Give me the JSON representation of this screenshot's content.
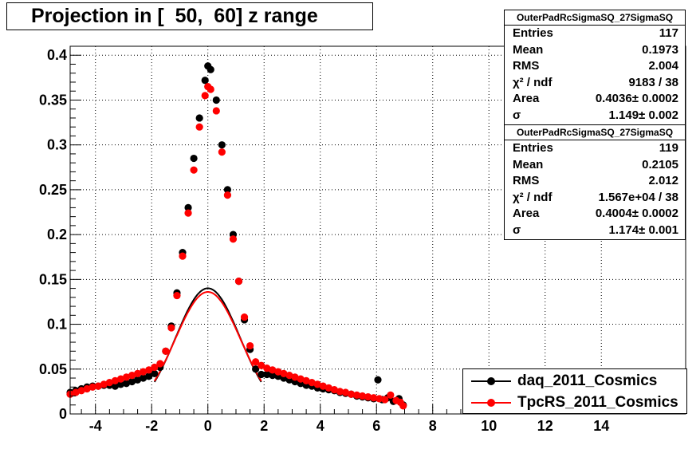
{
  "title": "Projection in [  50,  60] z range",
  "stats": [
    {
      "name": "OuterPadRcSigmaSQ_27SigmaSQ",
      "rows": [
        {
          "label": "Entries",
          "value": "117"
        },
        {
          "label": "Mean",
          "value": "0.1973"
        },
        {
          "label": "RMS",
          "value": "2.004"
        },
        {
          "label": "χ² / ndf",
          "value": "9183 / 38"
        },
        {
          "label": "Area",
          "value": "0.4036± 0.0002"
        },
        {
          "label": "σ",
          "value": "1.149± 0.002"
        }
      ]
    },
    {
      "name": "OuterPadRcSigmaSQ_27SigmaSQ",
      "rows": [
        {
          "label": "Entries",
          "value": "119"
        },
        {
          "label": "Mean",
          "value": "0.2105"
        },
        {
          "label": "RMS",
          "value": "2.012"
        },
        {
          "label": "χ² / ndf",
          "value": "1.567e+04 / 38"
        },
        {
          "label": "Area",
          "value": "0.4004± 0.0002"
        },
        {
          "label": "σ",
          "value": "1.174± 0.001"
        }
      ]
    }
  ],
  "legend": [
    {
      "label": "daq_2011_Cosmics",
      "color": "#000000"
    },
    {
      "label": "TpcRS_2011_Cosmics",
      "color": "#ff0000"
    }
  ],
  "chart_data": {
    "type": "scatter",
    "title": "Projection in [  50,  60] z range",
    "xlim": [
      -4.9,
      17
    ],
    "ylim": [
      0,
      0.41
    ],
    "grid": true,
    "legend_position": "bottom-right",
    "x_ticks": [
      -4,
      -2,
      0,
      2,
      4,
      6,
      8,
      10,
      12,
      14
    ],
    "y_ticks": [
      0,
      0.05,
      0.1,
      0.15,
      0.2,
      0.25,
      0.3,
      0.35,
      0.4
    ],
    "x_tick_labels": [
      "-4",
      "-2",
      "0",
      "2",
      "4",
      "6",
      "8",
      "10",
      "12",
      "14"
    ],
    "y_tick_labels": [
      "0",
      "0.05",
      "0.1",
      "0.15",
      "0.2",
      "0.25",
      "0.3",
      "0.35",
      "0.4"
    ],
    "series": [
      {
        "name": "daq_2011_Cosmics",
        "color": "#000000",
        "fit": {
          "area": 0.4036,
          "sigma": 1.149,
          "mean": 0.0
        },
        "points": [
          [
            -4.9,
            0.024
          ],
          [
            -4.7,
            0.026
          ],
          [
            -4.5,
            0.028
          ],
          [
            -4.3,
            0.03
          ],
          [
            -4.1,
            0.031
          ],
          [
            -3.9,
            0.031
          ],
          [
            -3.7,
            0.032
          ],
          [
            -3.5,
            0.032
          ],
          [
            -3.3,
            0.031
          ],
          [
            -3.1,
            0.033
          ],
          [
            -2.9,
            0.034
          ],
          [
            -2.7,
            0.036
          ],
          [
            -2.5,
            0.038
          ],
          [
            -2.3,
            0.04
          ],
          [
            -2.1,
            0.042
          ],
          [
            -1.9,
            0.045
          ],
          [
            -1.7,
            0.052
          ],
          [
            -1.5,
            0.07
          ],
          [
            -1.3,
            0.098
          ],
          [
            -1.1,
            0.135
          ],
          [
            -0.9,
            0.18
          ],
          [
            -0.7,
            0.23
          ],
          [
            -0.5,
            0.285
          ],
          [
            -0.3,
            0.33
          ],
          [
            -0.1,
            0.372
          ],
          [
            0.0,
            0.388
          ],
          [
            0.1,
            0.384
          ],
          [
            0.3,
            0.35
          ],
          [
            0.5,
            0.3
          ],
          [
            0.7,
            0.25
          ],
          [
            0.9,
            0.2
          ],
          [
            1.1,
            0.148
          ],
          [
            1.3,
            0.105
          ],
          [
            1.5,
            0.072
          ],
          [
            1.7,
            0.05
          ],
          [
            1.9,
            0.044
          ],
          [
            2.1,
            0.044
          ],
          [
            2.3,
            0.043
          ],
          [
            2.5,
            0.042
          ],
          [
            2.7,
            0.04
          ],
          [
            2.9,
            0.038
          ],
          [
            3.1,
            0.036
          ],
          [
            3.3,
            0.034
          ],
          [
            3.5,
            0.032
          ],
          [
            3.7,
            0.031
          ],
          [
            3.9,
            0.029
          ],
          [
            4.1,
            0.028
          ],
          [
            4.3,
            0.027
          ],
          [
            4.5,
            0.026
          ],
          [
            4.7,
            0.024
          ],
          [
            4.9,
            0.023
          ],
          [
            5.1,
            0.022
          ],
          [
            5.3,
            0.02
          ],
          [
            5.5,
            0.019
          ],
          [
            5.7,
            0.018
          ],
          [
            5.9,
            0.017
          ],
          [
            6.05,
            0.038
          ],
          [
            6.2,
            0.016
          ],
          [
            6.4,
            0.018
          ],
          [
            6.6,
            0.014
          ],
          [
            6.8,
            0.017
          ],
          [
            6.95,
            0.01
          ]
        ]
      },
      {
        "name": "TpcRS_2011_Cosmics",
        "color": "#ff0000",
        "fit": {
          "area": 0.4004,
          "sigma": 1.174,
          "mean": 0.0
        },
        "points": [
          [
            -4.9,
            0.022
          ],
          [
            -4.7,
            0.024
          ],
          [
            -4.5,
            0.026
          ],
          [
            -4.3,
            0.028
          ],
          [
            -4.1,
            0.03
          ],
          [
            -3.9,
            0.031
          ],
          [
            -3.7,
            0.033
          ],
          [
            -3.5,
            0.035
          ],
          [
            -3.3,
            0.037
          ],
          [
            -3.1,
            0.039
          ],
          [
            -2.9,
            0.041
          ],
          [
            -2.7,
            0.043
          ],
          [
            -2.5,
            0.045
          ],
          [
            -2.3,
            0.047
          ],
          [
            -2.1,
            0.049
          ],
          [
            -1.9,
            0.052
          ],
          [
            -1.7,
            0.056
          ],
          [
            -1.5,
            0.07
          ],
          [
            -1.3,
            0.096
          ],
          [
            -1.1,
            0.132
          ],
          [
            -0.9,
            0.176
          ],
          [
            -0.7,
            0.224
          ],
          [
            -0.5,
            0.272
          ],
          [
            -0.3,
            0.32
          ],
          [
            -0.1,
            0.355
          ],
          [
            0.0,
            0.365
          ],
          [
            0.1,
            0.362
          ],
          [
            0.3,
            0.338
          ],
          [
            0.5,
            0.292
          ],
          [
            0.7,
            0.244
          ],
          [
            0.9,
            0.195
          ],
          [
            1.1,
            0.148
          ],
          [
            1.3,
            0.108
          ],
          [
            1.5,
            0.076
          ],
          [
            1.7,
            0.058
          ],
          [
            1.9,
            0.054
          ],
          [
            2.1,
            0.051
          ],
          [
            2.3,
            0.049
          ],
          [
            2.5,
            0.047
          ],
          [
            2.7,
            0.045
          ],
          [
            2.9,
            0.043
          ],
          [
            3.1,
            0.041
          ],
          [
            3.3,
            0.039
          ],
          [
            3.5,
            0.037
          ],
          [
            3.7,
            0.035
          ],
          [
            3.9,
            0.033
          ],
          [
            4.1,
            0.031
          ],
          [
            4.3,
            0.029
          ],
          [
            4.5,
            0.027
          ],
          [
            4.7,
            0.025
          ],
          [
            4.9,
            0.024
          ],
          [
            5.1,
            0.022
          ],
          [
            5.3,
            0.021
          ],
          [
            5.5,
            0.02
          ],
          [
            5.7,
            0.019
          ],
          [
            5.9,
            0.018
          ],
          [
            6.1,
            0.017
          ],
          [
            6.3,
            0.016
          ],
          [
            6.5,
            0.021
          ],
          [
            6.7,
            0.015
          ],
          [
            6.85,
            0.013
          ],
          [
            6.95,
            0.009
          ]
        ]
      }
    ]
  }
}
